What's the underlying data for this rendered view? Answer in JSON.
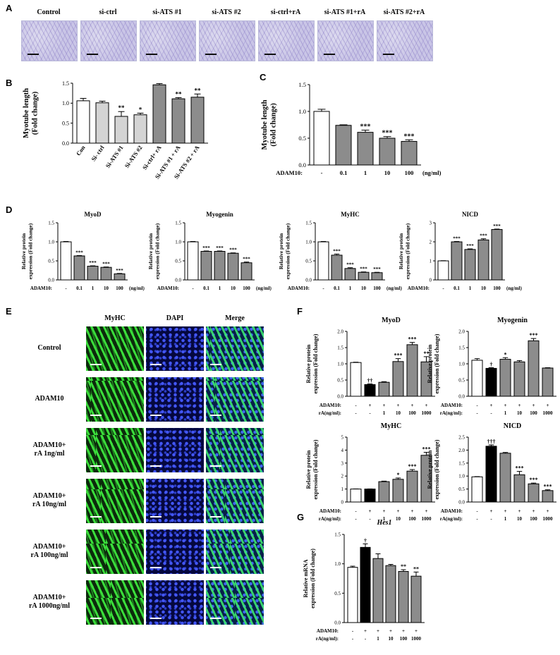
{
  "panels": {
    "A": "A",
    "B": "B",
    "C": "C",
    "D": "D",
    "E": "E",
    "F": "F",
    "G": "G"
  },
  "panel_a": {
    "labels": [
      "Control",
      "si-ctrl",
      "si-ATS #1",
      "si-ATS #2",
      "si-ctrl+rA",
      "si-ATS #1+rA",
      "si-ATS #2+rA"
    ]
  },
  "panel_e": {
    "columns": [
      "MyHC",
      "DAPI",
      "Merge"
    ],
    "rows": [
      [
        "Control"
      ],
      [
        "ADAM10"
      ],
      [
        "ADAM10+",
        "rA 1ng/ml"
      ],
      [
        "ADAM10+",
        "rA 10ng/ml"
      ],
      [
        "ADAM10+",
        "rA 100ng/ml"
      ],
      [
        "ADAM10+",
        "rA 1000ng/ml"
      ]
    ]
  },
  "chart_data": [
    {
      "id": "B",
      "type": "bar",
      "ylabel": "Myotube length\n(Fold change)",
      "categories": [
        "Con",
        "Si- ctrl",
        "Si-ATS #1",
        "Si-ATS #2",
        "Si-ctrl+ rA",
        "Si-ATS #1 + rA",
        "Si-ATS #2 + rA"
      ],
      "values": [
        1.06,
        1.01,
        0.67,
        0.71,
        1.46,
        1.11,
        1.15
      ],
      "errors": [
        0.06,
        0.04,
        0.12,
        0.04,
        0.03,
        0.03,
        0.08
      ],
      "annotations": [
        "",
        "",
        "**",
        "*",
        "",
        "**",
        "**"
      ],
      "colors": [
        "#ffffff",
        "#d4d4d4",
        "#d4d4d4",
        "#d4d4d4",
        "#8c8c8c",
        "#8c8c8c",
        "#8c8c8c"
      ],
      "ylim": [
        0,
        1.5
      ],
      "yticks": [
        "0.0",
        "0.5",
        "1.0",
        "1.5"
      ]
    },
    {
      "id": "C",
      "type": "bar",
      "ylabel": "Myotube length\n(Fold change)",
      "xrow_label": "ADAM10:",
      "categories": [
        "-",
        "0.1",
        "1",
        "10",
        "100"
      ],
      "unit": "(ng/ml)",
      "values": [
        1.0,
        0.74,
        0.61,
        0.5,
        0.44
      ],
      "errors": [
        0.04,
        0.01,
        0.04,
        0.03,
        0.03
      ],
      "annotations": [
        "",
        "",
        "***",
        "***",
        "***"
      ],
      "colors": [
        "#ffffff",
        "#8c8c8c",
        "#8c8c8c",
        "#8c8c8c",
        "#8c8c8c"
      ],
      "ylim": [
        0,
        1.5
      ],
      "yticks": [
        "0.0",
        "0.5",
        "1.0",
        "1.5"
      ]
    },
    {
      "id": "D1",
      "type": "bar",
      "title": "MyoD",
      "ylabel": "Relative protein\nexpression (Fold change)",
      "xrow_label": "ADAM10:",
      "categories": [
        "-",
        "0.1",
        "1",
        "10",
        "100"
      ],
      "unit": "(ng/ml)",
      "values": [
        1.0,
        0.63,
        0.36,
        0.33,
        0.16
      ],
      "errors": [
        0.01,
        0.01,
        0.01,
        0.01,
        0.01
      ],
      "annotations": [
        "",
        "***",
        "***",
        "***",
        "***"
      ],
      "colors": [
        "#ffffff",
        "#8c8c8c",
        "#8c8c8c",
        "#8c8c8c",
        "#8c8c8c"
      ],
      "ylim": [
        0,
        1.5
      ],
      "yticks": [
        "0.0",
        "0.5",
        "1.0",
        "1.5"
      ]
    },
    {
      "id": "D2",
      "type": "bar",
      "title": "Myogenin",
      "ylabel": "Relative protein\nexpression (Fold change)",
      "xrow_label": "ADAM10:",
      "categories": [
        "-",
        "0.1",
        "1",
        "10",
        "100"
      ],
      "unit": "(ng/ml)",
      "values": [
        1.0,
        0.75,
        0.75,
        0.7,
        0.45
      ],
      "errors": [
        0.01,
        0.01,
        0.01,
        0.01,
        0.02
      ],
      "annotations": [
        "",
        "***",
        "***",
        "***",
        "***"
      ],
      "colors": [
        "#ffffff",
        "#8c8c8c",
        "#8c8c8c",
        "#8c8c8c",
        "#8c8c8c"
      ],
      "ylim": [
        0,
        1.5
      ],
      "yticks": [
        "0.0",
        "0.5",
        "1.0",
        "1.5"
      ]
    },
    {
      "id": "D3",
      "type": "bar",
      "title": "MyHC",
      "ylabel": "Relative protein\nexpression (Fold change)",
      "xrow_label": "ADAM10:",
      "categories": [
        "-",
        "0.1",
        "1",
        "10",
        "100"
      ],
      "unit": "(ng/ml)",
      "values": [
        1.0,
        0.65,
        0.3,
        0.2,
        0.19
      ],
      "errors": [
        0.01,
        0.03,
        0.02,
        0.01,
        0.01
      ],
      "annotations": [
        "",
        "***",
        "***",
        "***",
        "***"
      ],
      "colors": [
        "#ffffff",
        "#8c8c8c",
        "#8c8c8c",
        "#8c8c8c",
        "#8c8c8c"
      ],
      "ylim": [
        0,
        1.5
      ],
      "yticks": [
        "0.0",
        "0.5",
        "1.0",
        "1.5"
      ]
    },
    {
      "id": "D4",
      "type": "bar",
      "title": "NICD",
      "ylabel": "Relative protein\nexpression (Fold change)",
      "xrow_label": "ADAM10:",
      "categories": [
        "-",
        "0.1",
        "1",
        "10",
        "100"
      ],
      "unit": "(ng/ml)",
      "values": [
        1.0,
        2.0,
        1.6,
        2.1,
        2.65
      ],
      "errors": [
        0.01,
        0.02,
        0.03,
        0.06,
        0.02
      ],
      "annotations": [
        "",
        "***",
        "***",
        "***",
        "***"
      ],
      "colors": [
        "#ffffff",
        "#8c8c8c",
        "#8c8c8c",
        "#8c8c8c",
        "#8c8c8c"
      ],
      "ylim": [
        0,
        3
      ],
      "yticks": [
        "0",
        "1",
        "2",
        "3"
      ]
    },
    {
      "id": "F1",
      "type": "bar",
      "title": "MyoD",
      "ylabel": "Relative protein\nexpression (Fold change)",
      "rows": [
        {
          "label": "ADAM10:",
          "values": [
            "-",
            "+",
            "+",
            "+",
            "+",
            "+"
          ]
        },
        {
          "label": "rA(ng/ml):",
          "values": [
            "-",
            "-",
            "1",
            "10",
            "100",
            "1000"
          ]
        }
      ],
      "values": [
        1.04,
        0.36,
        0.43,
        1.07,
        1.59,
        1.06
      ],
      "errors": [
        0.01,
        0.02,
        0.02,
        0.09,
        0.07,
        0.16
      ],
      "annotations": [
        "",
        "††",
        "",
        "***",
        "***",
        "**"
      ],
      "colors": [
        "#ffffff",
        "#000000",
        "#8c8c8c",
        "#8c8c8c",
        "#8c8c8c",
        "#8c8c8c"
      ],
      "ylim": [
        0,
        2.0
      ],
      "yticks": [
        "0.0",
        "0.5",
        "1.0",
        "1.5",
        "2.0"
      ]
    },
    {
      "id": "F2",
      "type": "bar",
      "title": "Myogenin",
      "ylabel": "Relative protein\nexpression (Fold change)",
      "rows": [
        {
          "label": "ADAM10:",
          "values": [
            "-",
            "+",
            "+",
            "+",
            "+",
            "+"
          ]
        },
        {
          "label": "rA(ng/ml):",
          "values": [
            "-",
            "-",
            "1",
            "10",
            "100",
            "1000"
          ]
        }
      ],
      "values": [
        1.11,
        0.86,
        1.14,
        1.06,
        1.71,
        0.87
      ],
      "errors": [
        0.05,
        0.02,
        0.05,
        0.04,
        0.07,
        0.01
      ],
      "annotations": [
        "",
        "†",
        "*",
        "",
        "***",
        ""
      ],
      "colors": [
        "#ffffff",
        "#000000",
        "#8c8c8c",
        "#8c8c8c",
        "#8c8c8c",
        "#8c8c8c"
      ],
      "ylim": [
        0,
        2.0
      ],
      "yticks": [
        "0.0",
        "0.5",
        "1.0",
        "1.5",
        "2.0"
      ]
    },
    {
      "id": "F3",
      "type": "bar",
      "title": "MyHC",
      "ylabel": "Relative protein\nexpression (Fold change)",
      "rows": [
        {
          "label": "ADAM10:",
          "values": [
            "-",
            "+",
            "+",
            "+",
            "+",
            "+"
          ]
        },
        {
          "label": "rA(ng/ml):",
          "values": [
            "-",
            "-",
            "1",
            "10",
            "100",
            "1000"
          ]
        }
      ],
      "values": [
        1.0,
        1.0,
        1.57,
        1.75,
        2.38,
        3.6
      ],
      "errors": [
        0.01,
        0.01,
        0.04,
        0.1,
        0.12,
        0.23
      ],
      "annotations": [
        "",
        "",
        "",
        "*",
        "***",
        "***"
      ],
      "colors": [
        "#ffffff",
        "#000000",
        "#8c8c8c",
        "#8c8c8c",
        "#8c8c8c",
        "#8c8c8c"
      ],
      "ylim": [
        0,
        5
      ],
      "yticks": [
        "0",
        "1",
        "2",
        "3",
        "4",
        "5"
      ]
    },
    {
      "id": "F4",
      "type": "bar",
      "title": "NICD",
      "ylabel": "Relative protein\nexpression (Fold change)",
      "rows": [
        {
          "label": "ADAM10:",
          "values": [
            "-",
            "+",
            "+",
            "+",
            "+",
            "+"
          ]
        },
        {
          "label": "rA(ng/ml):",
          "values": [
            "-",
            "-",
            "1",
            "10",
            "100",
            "1000"
          ]
        }
      ],
      "values": [
        0.97,
        2.15,
        1.88,
        1.05,
        0.7,
        0.44
      ],
      "errors": [
        0.01,
        0.05,
        0.03,
        0.13,
        0.03,
        0.03
      ],
      "annotations": [
        "",
        "†††",
        "",
        "***",
        "***",
        "***"
      ],
      "colors": [
        "#ffffff",
        "#000000",
        "#8c8c8c",
        "#8c8c8c",
        "#8c8c8c",
        "#8c8c8c"
      ],
      "ylim": [
        0,
        2.5
      ],
      "yticks": [
        "0.0",
        "0.5",
        "1.0",
        "1.5",
        "2.0",
        "2.5"
      ]
    },
    {
      "id": "G",
      "type": "bar",
      "title": "Hes1",
      "ylabel": "Relative mRNA\nexpression (Fold change)",
      "rows": [
        {
          "label": "ADAM10:",
          "values": [
            "-",
            "+",
            "+",
            "+",
            "+",
            "+"
          ]
        },
        {
          "label": "rA(ng/ml):",
          "values": [
            "-",
            "-",
            "1",
            "10",
            "100",
            "1000"
          ]
        }
      ],
      "values": [
        0.94,
        1.28,
        1.09,
        0.97,
        0.87,
        0.79
      ],
      "errors": [
        0.02,
        0.06,
        0.08,
        0.02,
        0.03,
        0.07
      ],
      "annotations": [
        "",
        "†",
        "",
        "",
        "**",
        "**"
      ],
      "colors": [
        "#ffffff",
        "#000000",
        "#8c8c8c",
        "#8c8c8c",
        "#8c8c8c",
        "#8c8c8c"
      ],
      "ylim": [
        0,
        1.5
      ],
      "yticks": [
        "0.0",
        "0.5",
        "1.0",
        "1.5"
      ]
    }
  ]
}
